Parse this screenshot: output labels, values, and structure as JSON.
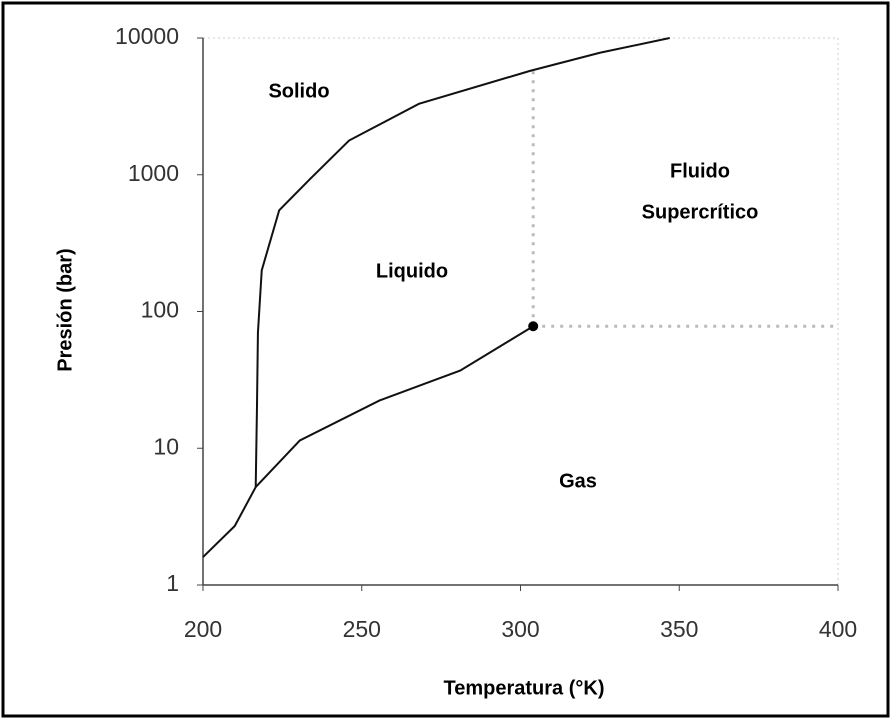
{
  "chart_data": {
    "type": "line",
    "xlabel": "Temperatura (°K)",
    "ylabel": "Presión (bar)",
    "xlim": [
      200,
      400
    ],
    "xticks": [
      200,
      250,
      300,
      350,
      400
    ],
    "ylim": [
      1,
      10000
    ],
    "yticks": [
      1,
      10,
      100,
      1000,
      10000
    ],
    "ylog": true,
    "series": [
      {
        "color": "#111111",
        "x": [
          200,
          210,
          216.6
        ],
        "values": [
          1.6,
          2.7,
          5.2
        ]
      },
      {
        "color": "#111111",
        "x": [
          216.6,
          217,
          217.3,
          218.5,
          224,
          233.7,
          246,
          268,
          303,
          325,
          347
        ],
        "values": [
          5.2,
          20,
          70,
          200,
          550,
          930,
          1780,
          3300,
          5750,
          7800,
          10000
        ]
      },
      {
        "color": "#111111",
        "x": [
          216.6,
          230.5,
          255.7,
          281,
          304
        ],
        "values": [
          5.2,
          11.4,
          22.4,
          37,
          78
        ]
      }
    ],
    "critical_point": {
      "x": 304,
      "y": 78
    },
    "reference_lines": [
      {
        "x": [
          304,
          304
        ],
        "y": [
          78,
          5750
        ]
      },
      {
        "x": [
          304,
          400
        ],
        "y": [
          78,
          78
        ]
      }
    ],
    "annotations": [
      {
        "lines": [
          "Solido"
        ]
      },
      {
        "lines": [
          "Liquido"
        ]
      },
      {
        "lines": [
          "Gas"
        ]
      },
      {
        "lines": [
          "Fluido",
          "Supercrítico"
        ]
      }
    ]
  }
}
